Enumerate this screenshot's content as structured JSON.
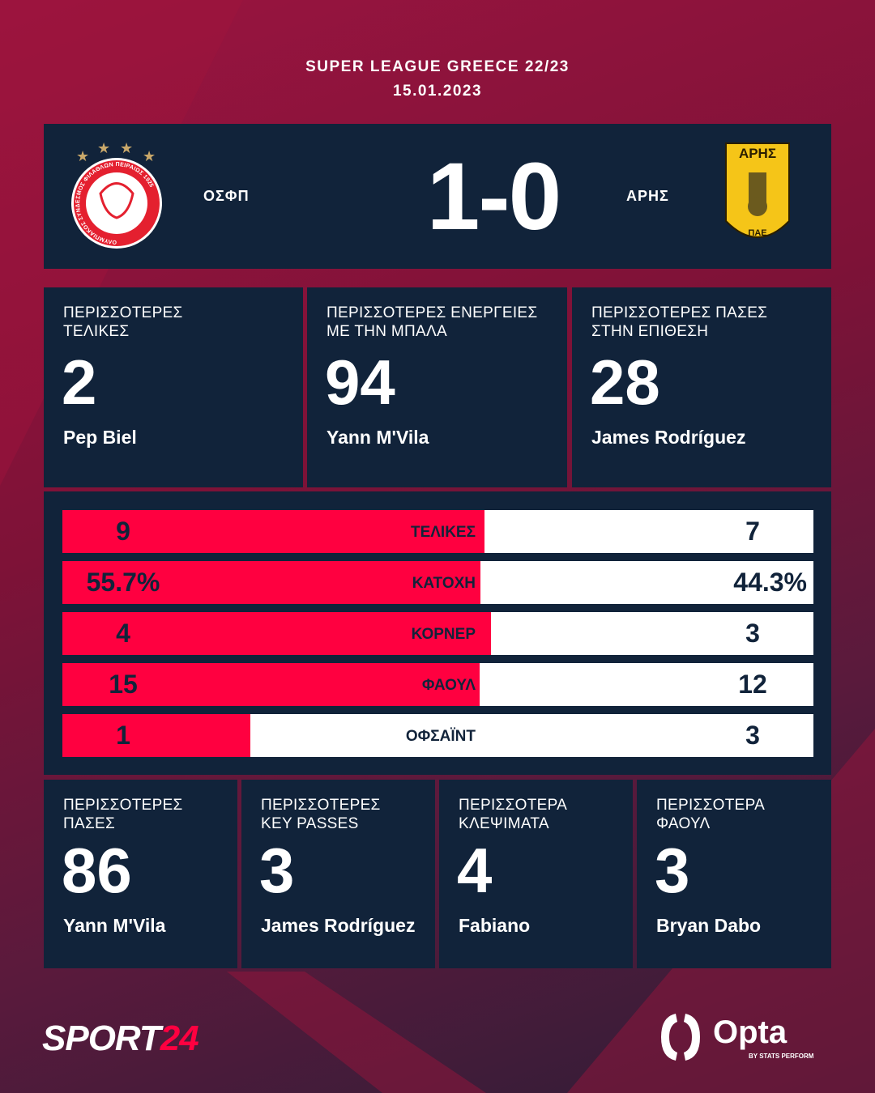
{
  "header": {
    "league": "SUPER LEAGUE GREECE 22/23",
    "date": "15.01.2023"
  },
  "match": {
    "home": "ΟΣΦΠ",
    "away": "ΑΡΗΣ",
    "score": "1-0",
    "home_logo_text": "ΟΛΥΜΠΙΑΚΟΣ ΣΥΝΔΕΣΜΟΣ ΦΙΛΑΘΛΩΝ ΠΕΙΡΑΙΩΣ 1925",
    "away_logo_text": [
      "ΑΡΗΣ",
      "ΠΑΕ"
    ]
  },
  "top_stats": [
    {
      "label": [
        "ΠΕΡΙΣΣΟΤΕΡΕΣ",
        "ΤΕΛΙΚΕΣ"
      ],
      "value": "2",
      "player": "Pep Biel"
    },
    {
      "label": [
        "ΠΕΡΙΣΣΟΤΕΡΕΣ ΕΝΕΡΓΕΙΕΣ",
        "ΜΕ ΤΗΝ ΜΠΑΛΑ"
      ],
      "value": "94",
      "player": "Yann M'Vila"
    },
    {
      "label": [
        "ΠΕΡΙΣΣΟΤΕΡΕΣ ΠΑΣΕΣ",
        "ΣΤΗΝ ΕΠΙΘΕΣΗ"
      ],
      "value": "28",
      "player": "James Rodríguez"
    }
  ],
  "bars": [
    {
      "label": "ΤΕΛΙΚΕΣ",
      "home": "9",
      "away": "7",
      "home_share": 0.5625
    },
    {
      "label": "ΚΑΤΟΧΗ",
      "home": "55.7%",
      "away": "44.3%",
      "home_share": 0.557
    },
    {
      "label": "ΚΟΡΝΕΡ",
      "home": "4",
      "away": "3",
      "home_share": 0.571
    },
    {
      "label": "ΦΑΟΥΛ",
      "home": "15",
      "away": "12",
      "home_share": 0.556
    },
    {
      "label": "ΟΦΣΑΪΝΤ",
      "home": "1",
      "away": "3",
      "home_share": 0.25
    }
  ],
  "bottom_stats": [
    {
      "label": [
        "ΠΕΡΙΣΣΟΤΕΡΕΣ",
        "ΠΑΣΕΣ"
      ],
      "value": "86",
      "player": "Yann M'Vila"
    },
    {
      "label": [
        "ΠΕΡΙΣΣΟΤΕΡΕΣ",
        "KEY PASSES"
      ],
      "value": "3",
      "player": "James Rodríguez"
    },
    {
      "label": [
        "ΠΕΡΙΣΣΟΤΕΡΑ",
        "ΚΛΕΨΙΜΑΤΑ"
      ],
      "value": "4",
      "player": "Fabiano"
    },
    {
      "label": [
        "ΠΕΡΙΣΣΟΤΕΡΑ",
        "ΦΑΟΥΛ"
      ],
      "value": "3",
      "player": "Bryan Dabo"
    }
  ],
  "footer": {
    "brand_a": "SPORT",
    "brand_b": "24",
    "opta": "Opta",
    "opta_sub": "BY STATS PERFORM"
  },
  "colors": {
    "navy": "#11233a",
    "red": "#ff0040",
    "gold": "#f5c518"
  }
}
